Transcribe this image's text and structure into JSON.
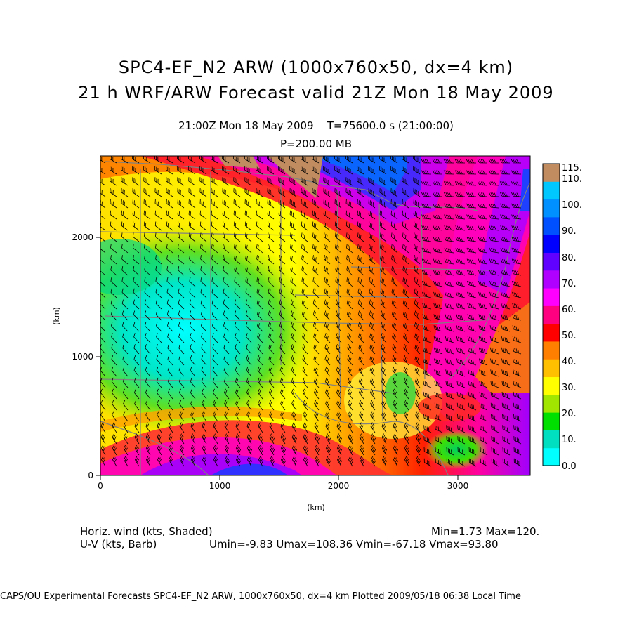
{
  "title": {
    "line1": "SPC4-EF_N2 ARW (1000x760x50, dx=4 km)",
    "line2": "21 h WRF/ARW Forecast valid 21Z Mon 18 May 2009"
  },
  "subtitle": {
    "time": "21:00Z Mon 18 May 2009",
    "t_seconds": "T=75600.0 s (21:00:00)",
    "level": "P=200.00 MB"
  },
  "axes": {
    "x_label": "(km)",
    "y_label": "(km)",
    "x_ticks": [
      "0",
      "1000",
      "2000",
      "3000"
    ],
    "y_ticks": [
      "0",
      "1000",
      "2000"
    ]
  },
  "colorbar": {
    "labels": [
      "0.0",
      "10.",
      "20.",
      "30.",
      "40.",
      "50.",
      "60.",
      "70.",
      "80.",
      "90.",
      "100.",
      "110.",
      "115."
    ],
    "colors": [
      "#00ffff",
      "#00e0c0",
      "#00e000",
      "#a0e600",
      "#ffff00",
      "#ffc000",
      "#ff8000",
      "#ff0000",
      "#ff0080",
      "#ff00ff",
      "#b000ff",
      "#6000ff",
      "#0000ff",
      "#0050ff",
      "#0090ff",
      "#00c8ff",
      "#c08c60"
    ]
  },
  "stats": {
    "field": "Horiz. wind (kts, Shaded)",
    "min_max": "Min=1.73 Max=120.",
    "barb": "U-V (kts, Barb)",
    "uv_range": "Umin=-9.83 Umax=108.36 Vmin=-67.18 Vmax=93.80"
  },
  "footer": "CAPS/OU Experimental Forecasts  SPC4-EF_N2 ARW, 1000x760x50, dx=4 km  Plotted 2009/05/18 06:38 Local Time"
}
